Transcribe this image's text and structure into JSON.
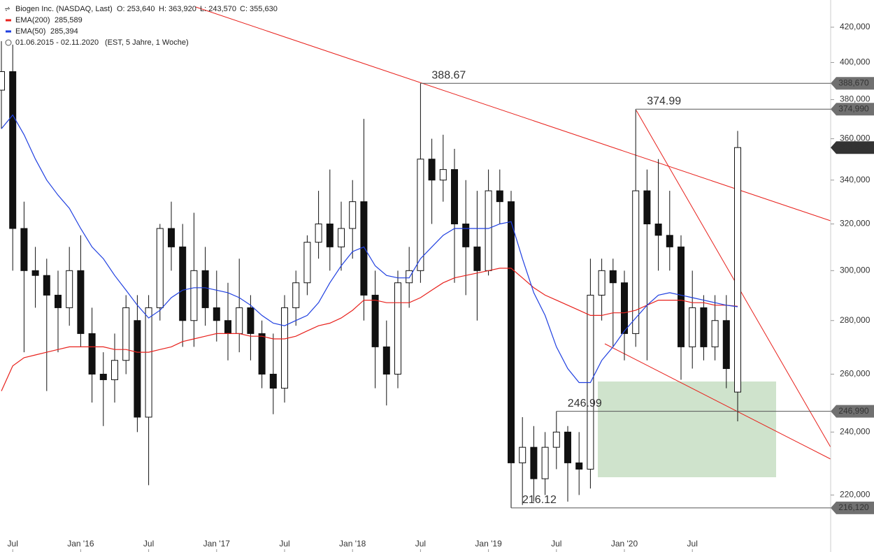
{
  "header": {
    "title": "Biogen Inc. (NASDAQ, Last)",
    "ohlc": [
      "O: 253,640",
      "H: 363,920",
      "L: 243,570",
      "C: 355,630"
    ],
    "range": "01.06.2015 - 02.11.2020",
    "range_note": "(EST, 5 Jahre, 1 Woche)"
  },
  "chart_data": {
    "type": "candlestick",
    "log_y": true,
    "x": [
      "2015-06",
      "2015-07",
      "2015-08",
      "2015-09",
      "2015-10",
      "2015-11",
      "2015-12",
      "2016-01",
      "2016-02",
      "2016-03",
      "2016-04",
      "2016-05",
      "2016-06",
      "2016-07",
      "2016-08",
      "2016-09",
      "2016-10",
      "2016-11",
      "2016-12",
      "2017-01",
      "2017-02",
      "2017-03",
      "2017-04",
      "2017-05",
      "2017-06",
      "2017-07",
      "2017-08",
      "2017-09",
      "2017-10",
      "2017-11",
      "2017-12",
      "2018-01",
      "2018-02",
      "2018-03",
      "2018-04",
      "2018-05",
      "2018-06",
      "2018-07",
      "2018-08",
      "2018-09",
      "2018-10",
      "2018-11",
      "2018-12",
      "2019-01",
      "2019-02",
      "2019-03",
      "2019-04",
      "2019-05",
      "2019-06",
      "2019-07",
      "2019-08",
      "2019-09",
      "2019-10",
      "2019-11",
      "2019-12",
      "2020-01",
      "2020-02",
      "2020-03",
      "2020-04",
      "2020-05",
      "2020-06",
      "2020-07",
      "2020-08",
      "2020-09",
      "2020-10",
      "2020-11"
    ],
    "open": [
      385,
      395,
      318,
      300,
      298,
      290,
      285,
      300,
      275,
      260,
      258,
      265,
      280,
      245,
      285,
      318,
      310,
      280,
      300,
      285,
      280,
      275,
      285,
      275,
      260,
      255,
      285,
      295,
      312,
      320,
      310,
      318,
      330,
      290,
      270,
      260,
      295,
      300,
      350,
      340,
      345,
      320,
      310,
      300,
      335,
      330,
      230,
      235,
      225,
      235,
      240,
      230,
      228,
      290,
      300,
      295,
      275,
      335,
      320,
      315,
      310,
      270,
      285,
      270,
      280,
      253.64
    ],
    "high": [
      412,
      410,
      330,
      310,
      305,
      300,
      310,
      315,
      285,
      268,
      275,
      290,
      290,
      290,
      320,
      330,
      320,
      325,
      310,
      300,
      295,
      305,
      290,
      280,
      275,
      290,
      300,
      315,
      335,
      345,
      330,
      340,
      370,
      300,
      280,
      300,
      310,
      388.67,
      360,
      362,
      355,
      340,
      335,
      345,
      345,
      335,
      245,
      242,
      240,
      246.99,
      242,
      240,
      305,
      305,
      305,
      300,
      374.99,
      345,
      350,
      335,
      315,
      300,
      290,
      290,
      290,
      363.92
    ],
    "low": [
      365,
      300,
      268,
      285,
      254,
      268,
      278,
      270,
      250,
      242,
      250,
      260,
      240,
      223,
      280,
      300,
      270,
      270,
      278,
      272,
      265,
      268,
      265,
      255,
      246,
      250,
      278,
      290,
      305,
      300,
      300,
      305,
      280,
      255,
      249,
      255,
      285,
      295,
      320,
      330,
      295,
      290,
      280,
      298,
      320,
      216.12,
      217,
      218,
      220,
      228,
      218,
      220,
      222,
      280,
      270,
      265,
      270,
      265,
      300,
      300,
      258,
      262,
      265,
      265,
      255,
      243.57
    ],
    "close": [
      395,
      318,
      300,
      298,
      290,
      285,
      300,
      275,
      260,
      258,
      265,
      285,
      245,
      285,
      318,
      310,
      280,
      300,
      285,
      280,
      275,
      285,
      275,
      260,
      255,
      285,
      295,
      312,
      320,
      310,
      318,
      330,
      290,
      270,
      260,
      295,
      300,
      350,
      340,
      345,
      320,
      310,
      300,
      335,
      330,
      230,
      235,
      225,
      235,
      240,
      230,
      228,
      290,
      300,
      295,
      275,
      335,
      320,
      315,
      310,
      270,
      285,
      270,
      280,
      262,
      355.63
    ],
    "series": [
      {
        "name": "EMA(200)",
        "color": "#e8211c",
        "value_label": "285,589",
        "values": [
          254,
          263,
          266,
          267,
          268,
          269,
          270,
          270,
          270,
          270,
          269,
          269,
          268,
          268,
          269,
          270,
          272,
          273,
          274,
          275,
          275,
          275,
          274,
          274,
          273,
          273,
          274,
          276,
          278,
          279,
          281,
          284,
          288,
          288,
          287,
          287,
          287,
          289,
          292,
          295,
          297,
          298,
          299,
          300,
          301,
          301,
          297,
          293,
          290,
          288,
          286,
          284,
          282,
          282,
          283,
          283,
          284,
          286,
          288,
          288,
          288,
          287,
          287,
          286,
          286,
          285.589
        ]
      },
      {
        "name": "EMA(50)",
        "color": "#1f3fe0",
        "value_label": "285,394",
        "values": [
          365,
          372,
          362,
          350,
          340,
          333,
          327,
          318,
          310,
          305,
          298,
          292,
          286,
          281,
          284,
          289,
          292,
          293,
          293,
          292,
          291,
          289,
          286,
          282,
          279,
          278,
          280,
          282,
          287,
          295,
          302,
          308,
          310,
          302,
          298,
          297,
          297,
          305,
          310,
          315,
          318,
          318,
          318,
          318,
          320,
          321,
          305,
          291,
          282,
          270,
          262,
          257,
          257,
          265,
          270,
          276,
          281,
          286,
          290,
          291,
          290,
          289,
          288,
          287,
          286,
          285.394
        ]
      }
    ],
    "ylim": [
      207.3,
      436.1
    ],
    "yticks": [
      {
        "value": 220,
        "label": "220,000"
      },
      {
        "value": 240,
        "label": "240,000"
      },
      {
        "value": 260,
        "label": "260,000"
      },
      {
        "value": 280,
        "label": "280,000"
      },
      {
        "value": 300,
        "label": "300,000"
      },
      {
        "value": 320,
        "label": "320,000"
      },
      {
        "value": 340,
        "label": "340,000"
      },
      {
        "value": 360,
        "label": "360,000"
      },
      {
        "value": 380,
        "label": "380,000"
      },
      {
        "value": 400,
        "label": "400,000"
      },
      {
        "value": 420,
        "label": "420,000"
      }
    ],
    "xticks": [
      {
        "value": "2015-07",
        "label": "Jul"
      },
      {
        "value": "2016-01",
        "label": "Jan '16"
      },
      {
        "value": "2016-07",
        "label": "Jul"
      },
      {
        "value": "2017-01",
        "label": "Jan '17"
      },
      {
        "value": "2017-07",
        "label": "Jul"
      },
      {
        "value": "2018-01",
        "label": "Jan '18"
      },
      {
        "value": "2018-07",
        "label": "Jul"
      },
      {
        "value": "2019-01",
        "label": "Jan '19"
      },
      {
        "value": "2019-07",
        "label": "Jul"
      },
      {
        "value": "2020-01",
        "label": "Jan '20"
      },
      {
        "value": "2020-07",
        "label": "Jul"
      }
    ],
    "annotations": [
      {
        "x": "2018-07",
        "value": 388.67,
        "label": "388.67",
        "tag": "388,670"
      },
      {
        "x": "2020-02",
        "value": 374.99,
        "label": "374.99",
        "tag": "374,990"
      },
      {
        "x": "2019-07",
        "value": 246.99,
        "label": "246.99",
        "tag": "246,990"
      },
      {
        "x": "2019-03",
        "value": 216.12,
        "label": "216.12",
        "tag": "216,120"
      }
    ],
    "last_price": {
      "value": 355.63,
      "label": "355,630"
    }
  }
}
